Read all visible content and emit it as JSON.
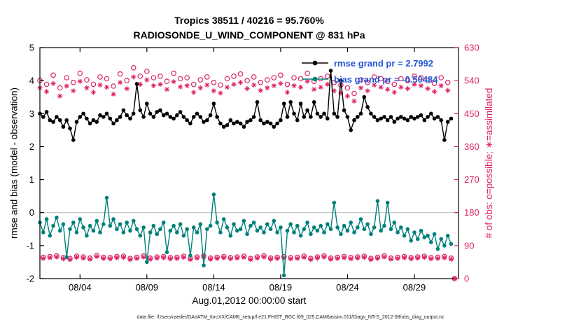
{
  "footer": {
    "datafile": "data file: /Users/raeder/DAI/ATM_forcXX/CAM6_setup/f.e21.FHIST_BGC.f09_025.CAM6assim.011/Diags_NTrS_2012-08/obs_diag_output.nc"
  },
  "legend": {
    "rmse_label": "rmse grand pr = 2.7992",
    "bias_label": "bias grand pr = -0.50484",
    "text_color": "#2456d9"
  },
  "chart_data": {
    "type": "line",
    "title": "Tropics 38511 / 40216 = 95.760%",
    "subtitle": "RADIOSONDE_U_WIND_COMPONENT @ 831 hPa",
    "x_axis": {
      "label": "Aug.01,2012 00:00:00 start",
      "lim": [
        1,
        32.3
      ],
      "tick_days": [
        4,
        9,
        14,
        19,
        24,
        29
      ],
      "tick_labels": [
        "08/04",
        "08/09",
        "08/14",
        "08/19",
        "08/24",
        "08/29"
      ]
    },
    "left_axis": {
      "label": "rmse and bias (model - observation)",
      "lim": [
        -2,
        5
      ],
      "ticks": [
        -2,
        -1,
        0,
        1,
        2,
        3,
        4,
        5
      ]
    },
    "right_axis": {
      "label": "# of obs: o=possible; ∗=assimilated",
      "lim": [
        0,
        630
      ],
      "ticks": [
        0,
        90,
        180,
        270,
        360,
        450,
        540,
        630
      ],
      "color": "#dc2367"
    },
    "time_start_day": 1,
    "time_step_days": 0.25,
    "time_step_hours": 6,
    "zero_line_color": "#c8c8c8",
    "grid": false,
    "legend_position": "top-right-inside",
    "series": [
      {
        "name": "rmse",
        "axis": "left",
        "color": "#000000",
        "marker": "dot",
        "grand_value": 2.7992,
        "values": [
          3.0,
          2.9,
          3.05,
          2.8,
          2.75,
          2.9,
          2.8,
          2.6,
          2.8,
          2.55,
          2.2,
          2.75,
          2.9,
          3.0,
          2.85,
          2.7,
          2.8,
          2.75,
          2.95,
          2.9,
          3.0,
          2.85,
          2.7,
          2.8,
          2.9,
          3.1,
          2.95,
          2.85,
          3.0,
          3.9,
          3.1,
          2.9,
          3.3,
          3.0,
          2.9,
          3.05,
          3.1,
          2.95,
          3.0,
          2.9,
          2.85,
          2.95,
          3.05,
          2.9,
          2.8,
          2.7,
          2.9,
          3.0,
          2.9,
          2.75,
          2.8,
          2.95,
          3.3,
          2.9,
          2.7,
          2.6,
          2.65,
          2.8,
          2.7,
          2.75,
          2.7,
          2.6,
          2.75,
          2.8,
          2.9,
          3.35,
          2.8,
          2.7,
          2.75,
          2.7,
          2.6,
          2.7,
          2.8,
          3.3,
          2.9,
          3.35,
          3.0,
          2.8,
          3.3,
          2.9,
          3.1,
          2.9,
          3.35,
          3.0,
          2.9,
          3.0,
          2.85,
          4.3,
          3.0,
          2.9,
          4.0,
          3.1,
          2.9,
          2.5,
          2.8,
          2.9,
          3.0,
          3.5,
          3.2,
          3.0,
          2.9,
          2.8,
          2.85,
          2.9,
          2.8,
          2.9,
          2.75,
          2.85,
          2.9,
          2.85,
          2.8,
          2.9,
          2.85,
          2.9,
          2.95,
          2.8,
          2.9,
          3.0,
          2.85,
          2.9,
          2.8,
          2.2,
          2.75,
          2.85
        ]
      },
      {
        "name": "bias",
        "axis": "left",
        "color": "#00807a",
        "marker": "dot",
        "grand_value": -0.50484,
        "values": [
          -0.3,
          -0.6,
          -0.2,
          -0.7,
          -0.4,
          -0.15,
          -0.55,
          -0.35,
          -1.35,
          -0.5,
          -0.3,
          -0.6,
          -0.2,
          -0.45,
          -0.7,
          -0.4,
          -0.55,
          -0.25,
          -0.6,
          -0.35,
          0.45,
          -0.4,
          -0.2,
          -0.5,
          -0.35,
          -0.6,
          -0.3,
          -0.55,
          -0.25,
          -0.5,
          -0.7,
          -0.45,
          -1.5,
          -0.6,
          -0.4,
          -0.65,
          -0.5,
          -0.3,
          -1.2,
          -0.55,
          -0.4,
          -0.6,
          -0.35,
          -0.7,
          -0.5,
          -1.3,
          -0.45,
          -0.6,
          -0.35,
          -1.6,
          -0.5,
          -0.4,
          0.55,
          -0.3,
          -0.6,
          -0.2,
          -0.45,
          -0.7,
          -0.35,
          -0.55,
          -0.5,
          -0.25,
          -0.65,
          -0.4,
          -0.3,
          -0.55,
          -0.45,
          -0.6,
          -0.35,
          -0.5,
          -0.25,
          -0.6,
          -0.45,
          -1.9,
          -0.55,
          -0.35,
          -0.6,
          -0.4,
          -0.7,
          -0.5,
          -0.3,
          -0.65,
          -0.45,
          -0.55,
          -0.4,
          -0.6,
          -0.35,
          -0.5,
          0.3,
          -0.45,
          -0.65,
          -0.4,
          -0.55,
          -0.3,
          -0.6,
          -0.45,
          -0.2,
          -0.5,
          -0.35,
          -0.65,
          -0.45,
          0.35,
          -0.55,
          -0.4,
          0.3,
          -0.5,
          -0.3,
          -0.6,
          -0.45,
          -0.7,
          -0.5,
          -0.85,
          -0.6,
          -0.8,
          -0.55,
          -0.75,
          -0.7,
          -0.9,
          -0.65,
          -1.1,
          -0.8,
          -1.0,
          -0.7,
          -0.95
        ]
      },
      {
        "name": "possible",
        "axis": "right",
        "color": "#dc2367",
        "marker": "circle",
        "values": [
          540,
          58,
          530,
          60,
          555,
          62,
          520,
          57,
          548,
          55,
          535,
          61,
          560,
          59,
          542,
          56,
          530,
          63,
          550,
          58,
          545,
          57,
          525,
          60,
          558,
          61,
          540,
          55,
          575,
          58,
          552,
          62,
          565,
          56,
          548,
          59,
          552,
          60,
          538,
          57,
          560,
          58,
          545,
          61,
          548,
          55,
          530,
          59,
          542,
          62,
          550,
          56,
          535,
          58,
          528,
          60,
          545,
          57,
          552,
          59,
          558,
          61,
          540,
          55,
          550,
          59,
          535,
          62,
          542,
          56,
          548,
          58,
          555,
          60,
          530,
          57,
          548,
          58,
          545,
          61,
          560,
          55,
          538,
          59,
          545,
          62,
          552,
          56,
          535,
          58,
          528,
          60,
          520,
          57,
          505,
          59,
          542,
          61,
          535,
          55,
          550,
          58,
          545,
          62,
          538,
          56,
          530,
          58,
          545,
          60,
          540,
          57,
          552,
          59,
          548,
          61,
          540,
          57,
          532,
          58,
          548,
          60,
          535,
          56,
          0
        ]
      },
      {
        "name": "assimilated",
        "axis": "right",
        "color": "#dc2367",
        "marker": "asterisk",
        "values": [
          520,
          55,
          510,
          57,
          532,
          59,
          498,
          54,
          525,
          52,
          512,
          58,
          538,
          56,
          520,
          53,
          508,
          60,
          528,
          55,
          522,
          54,
          503,
          57,
          535,
          58,
          518,
          52,
          550,
          55,
          530,
          59,
          542,
          53,
          526,
          56,
          530,
          57,
          516,
          54,
          537,
          55,
          523,
          58,
          526,
          52,
          508,
          56,
          520,
          59,
          528,
          53,
          512,
          55,
          506,
          57,
          522,
          54,
          530,
          56,
          535,
          58,
          518,
          52,
          528,
          56,
          513,
          59,
          520,
          53,
          526,
          55,
          532,
          57,
          508,
          54,
          526,
          55,
          522,
          58,
          538,
          52,
          516,
          56,
          522,
          59,
          530,
          53,
          512,
          55,
          506,
          57,
          498,
          54,
          484,
          56,
          520,
          58,
          512,
          52,
          528,
          55,
          522,
          59,
          516,
          53,
          508,
          55,
          522,
          57,
          518,
          54,
          530,
          56,
          526,
          58,
          518,
          54,
          510,
          55,
          526,
          57,
          513,
          53,
          0
        ]
      }
    ]
  }
}
